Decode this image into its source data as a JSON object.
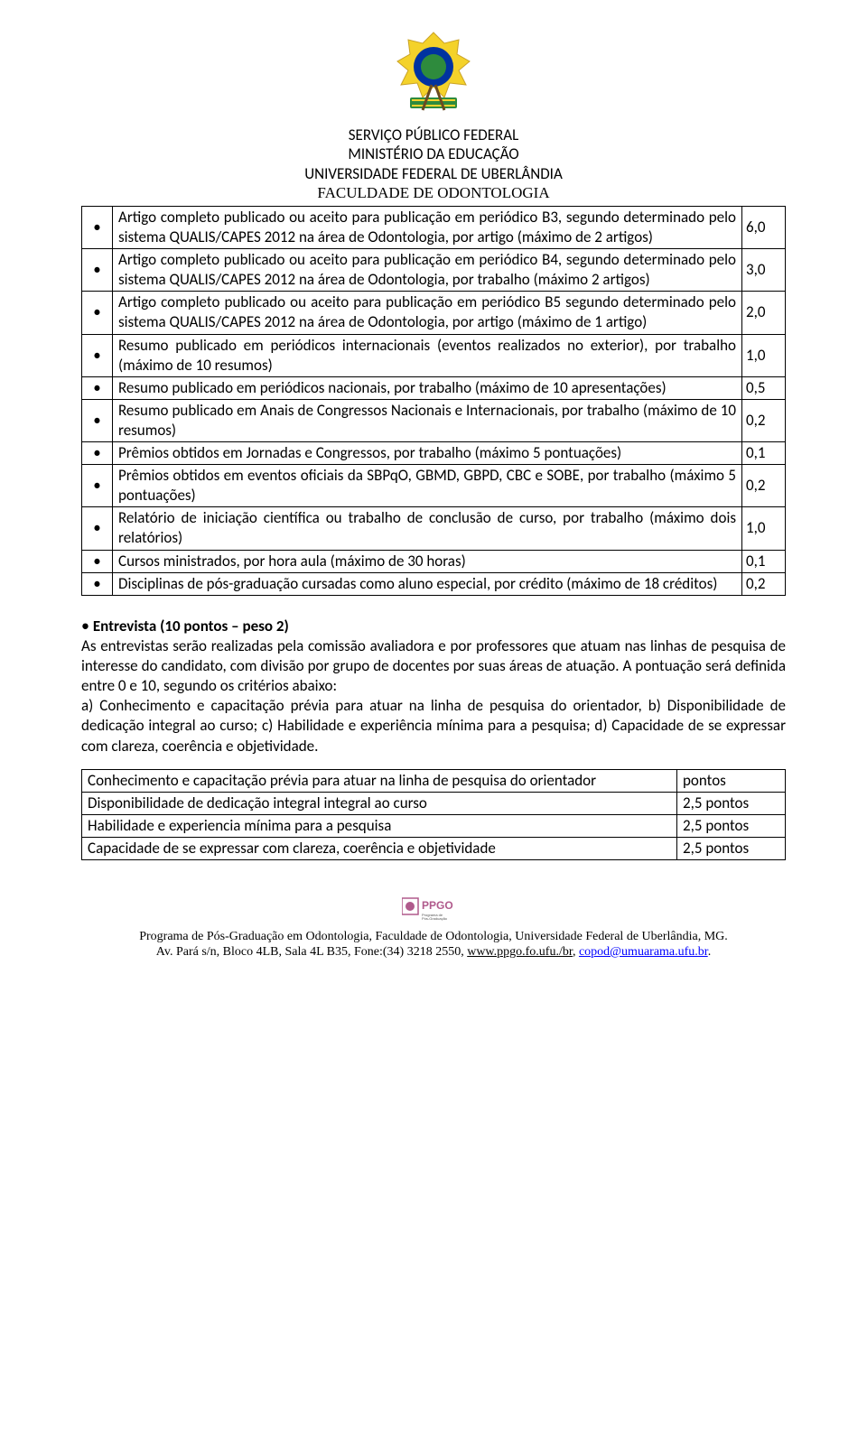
{
  "header": {
    "line1": "SERVIÇO PÚBLICO FEDERAL",
    "line2": "MINISTÉRIO DA EDUCAÇÃO",
    "line3": "UNIVERSIDADE FEDERAL DE UBERLÂNDIA",
    "line4": "FACULDADE DE ODONTOLOGIA"
  },
  "logo_colors": {
    "green": "#2e8b3d",
    "yellow": "#f4d22a",
    "blue": "#0033a0",
    "gold": "#c9a227",
    "brown": "#6b4a1f"
  },
  "rows": [
    {
      "text": "Artigo completo publicado ou aceito para publicação em periódico  B3, segundo determinado pelo sistema QUALIS/CAPES 2012 na área de Odontologia, por artigo (máximo de 2 artigos)",
      "value": "6,0"
    },
    {
      "text": "Artigo completo publicado ou aceito para publicação em periódico  B4, segundo determinado pelo sistema QUALIS/CAPES 2012 na área de Odontologia, por trabalho (máximo 2 artigos)",
      "value": "3,0"
    },
    {
      "text": "Artigo completo publicado ou aceito para publicação em periódico  B5 segundo determinado pelo sistema QUALIS/CAPES 2012 na área de Odontologia, por artigo (máximo de 1 artigo)",
      "value": "2,0"
    },
    {
      "text": "Resumo publicado em periódicos internacionais (eventos realizados no exterior), por trabalho (máximo de 10 resumos)",
      "value": "1,0"
    },
    {
      "text": "Resumo publicado em periódicos nacionais, por trabalho (máximo de 10 apresentações)",
      "value": "0,5"
    },
    {
      "text": "Resumo publicado em Anais de Congressos Nacionais e Internacionais, por trabalho (máximo de 10 resumos)",
      "value": "0,2"
    },
    {
      "text": "Prêmios obtidos em Jornadas e Congressos, por trabalho (máximo 5 pontuações)",
      "value": "0,1"
    },
    {
      "text": "Prêmios obtidos em eventos oficiais da SBPqO, GBMD, GBPD, CBC e SOBE, por trabalho (máximo 5 pontuações)",
      "value": "0,2"
    },
    {
      "text": "Relatório de iniciação científica ou trabalho de conclusão de curso, por trabalho (máximo dois relatórios)",
      "value": "1,0"
    },
    {
      "text": "Cursos ministrados, por hora aula (máximo de 30 horas)",
      "value": "0,1"
    },
    {
      "text": "Disciplinas de pós-graduação cursadas como aluno especial, por crédito (máximo de 18 créditos)",
      "value": "0,2"
    }
  ],
  "interview": {
    "title": "Entrevista (10 pontos – peso 2)",
    "para": "As entrevistas serão realizadas pela comissão avaliadora e por professores que atuam nas linhas de pesquisa de interesse do candidato, com divisão por grupo de docentes por suas áreas de atuação. A pontuação será definida entre 0 e 10, segundo os critérios abaixo:\na) Conhecimento e capacitação prévia para atuar na linha de pesquisa do orientador, b) Disponibilidade de dedicação integral ao curso; c) Habilidade e experiência mínima para a pesquisa; d) Capacidade de se expressar com clareza, coerência e objetividade."
  },
  "criteria": {
    "col_pts_header": "pontos",
    "rows": [
      {
        "label": "Conhecimento e capacitação prévia para atuar na linha de pesquisa do orientador",
        "pts": "pontos"
      },
      {
        "label": "Disponibilidade de dedicação integral integral ao curso",
        "pts": "2,5 pontos"
      },
      {
        "label": "Habilidade e experiencia mínima para a pesquisa",
        "pts": "2,5 pontos"
      },
      {
        "label": "Capacidade de se expressar com clareza, coerência e objetividade",
        "pts": "2,5 pontos"
      }
    ]
  },
  "footer": {
    "line1_plain": "Programa de Pós-Graduação em Odontologia, Faculdade de Odontologia, Universidade Federal de Uberlândia, MG.",
    "line2_pre": "Av. Pará s/n, Bloco 4LB, Sala 4L B35, Fone:(34) 3218 2550, ",
    "link1": "www.ppgo.fo.ufu./br",
    "sep": ", ",
    "link2": "copod@umuarama.ufu.br",
    "dot": ".",
    "ppgo_label": "PPGO",
    "ppgo_colors": {
      "box": "#ffffff",
      "border": "#b05a8c",
      "text": "#b05a8c",
      "sub": "#555555"
    }
  }
}
